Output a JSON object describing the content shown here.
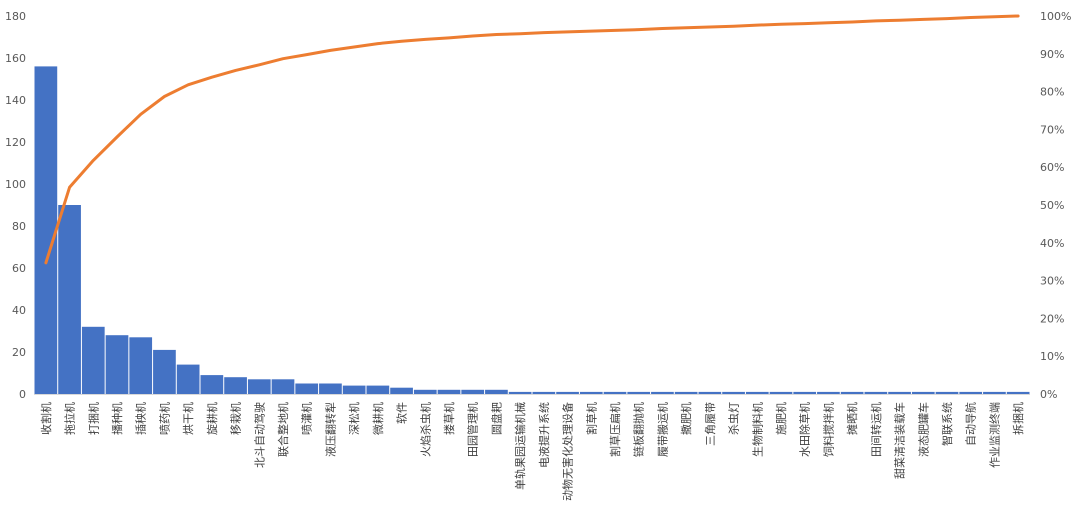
{
  "chart_data": {
    "type": "bar",
    "title": "",
    "xlabel": "",
    "ylabel": "",
    "grid": false,
    "legend": "none",
    "ylim": [
      0,
      180
    ],
    "y_ticks": [
      "0",
      "20",
      "40",
      "60",
      "80",
      "100",
      "120",
      "140",
      "160",
      "180"
    ],
    "y2lim": [
      0,
      100
    ],
    "y2_ticks": [
      "0%",
      "10%",
      "20%",
      "30%",
      "40%",
      "50%",
      "60%",
      "70%",
      "80%",
      "90%",
      "100%"
    ],
    "categories": [
      "收割机",
      "拖拉机",
      "打捆机",
      "播种机",
      "插秧机",
      "喷药机",
      "烘干机",
      "旋耕机",
      "移栽机",
      "北斗自动驾驶",
      "联合整地机",
      "喷灌机",
      "液压翻转犁",
      "深松机",
      "微耕机",
      "软件",
      "火焰杀虫机",
      "搂草机",
      "田园管理机",
      "圆盘耙",
      "单轨果园运输机械",
      "电液提升系统",
      "动物无害化处理设备",
      "割草机",
      "割草压扁机",
      "链板翻抛机",
      "履带搬运机",
      "撒肥机",
      "三角履带",
      "杀虫灯",
      "生物制料机",
      "施肥机",
      "水田除草机",
      "饲料搅拌机",
      "摊晒机",
      "田间转运机",
      "甜菜清洁装载车",
      "液态肥罐车",
      "智联系统",
      "自动导航",
      "作业监测终端",
      "拆捆机"
    ],
    "series": [
      {
        "type": "bar",
        "color": "#4472C4",
        "values": [
          156,
          90,
          32,
          28,
          27,
          21,
          14,
          9,
          8,
          7,
          7,
          5,
          5,
          4,
          4,
          3,
          2,
          2,
          2,
          2,
          1,
          1,
          1,
          1,
          1,
          1,
          1,
          1,
          1,
          1,
          1,
          1,
          1,
          1,
          1,
          1,
          1,
          1,
          1,
          1,
          1,
          1
        ]
      },
      {
        "type": "line",
        "axis": "right",
        "color": "#ED7D31",
        "values": [
          34.7,
          54.7,
          61.8,
          68.0,
          74.0,
          78.7,
          81.8,
          83.8,
          85.6,
          87.1,
          88.7,
          89.8,
          90.9,
          91.8,
          92.7,
          93.3,
          93.8,
          94.2,
          94.7,
          95.1,
          95.3,
          95.6,
          95.8,
          96.0,
          96.2,
          96.4,
          96.7,
          96.9,
          97.1,
          97.3,
          97.6,
          97.8,
          98.0,
          98.2,
          98.4,
          98.7,
          98.9,
          99.1,
          99.3,
          99.6,
          99.8,
          100.0
        ]
      }
    ]
  },
  "colors": {
    "bar": "#4472C4",
    "line": "#ED7D31",
    "axis": "#d9d9d9"
  }
}
